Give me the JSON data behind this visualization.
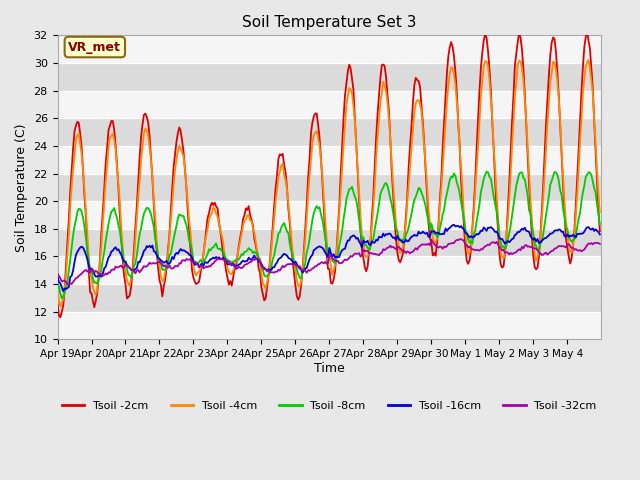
{
  "title": "Soil Temperature Set 3",
  "xlabel": "Time",
  "ylabel": "Soil Temperature (C)",
  "ylim": [
    10,
    32
  ],
  "annotation_label": "VR_met",
  "background_color": "#e8e8e8",
  "tick_labels": [
    "Apr 19",
    "Apr 20",
    "Apr 21",
    "Apr 22",
    "Apr 23",
    "Apr 24",
    "Apr 25",
    "Apr 26",
    "Apr 27",
    "Apr 28",
    "Apr 29",
    "Apr 30",
    "May 1",
    "May 2",
    "May 3",
    "May 4"
  ],
  "lines": [
    {
      "label": "Tsoil -2cm",
      "color": "#dd0000",
      "lw": 1.3
    },
    {
      "label": "Tsoil -4cm",
      "color": "#ff8800",
      "lw": 1.3
    },
    {
      "label": "Tsoil -8cm",
      "color": "#00cc00",
      "lw": 1.3
    },
    {
      "label": "Tsoil -16cm",
      "color": "#0000dd",
      "lw": 1.3
    },
    {
      "label": "Tsoil -32cm",
      "color": "#aa00aa",
      "lw": 1.3
    }
  ],
  "peak_heights_2cm": [
    26,
    26,
    26.5,
    25.2,
    20,
    19.5,
    23.5,
    26.5,
    29.8,
    30,
    29,
    31.5,
    32,
    32,
    31.8,
    32
  ],
  "night_mins_2cm": [
    11.5,
    12.5,
    13,
    13.5,
    14,
    14,
    13,
    13,
    14,
    15,
    15.5,
    16,
    15.5,
    15,
    15,
    15.5
  ]
}
